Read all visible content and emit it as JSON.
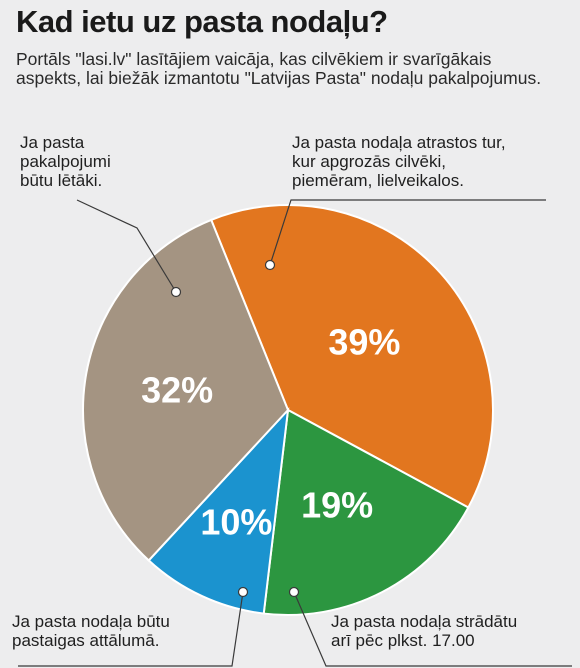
{
  "header": {
    "title": "Kad ietu uz pasta nodaļu?",
    "subtitle": "Portāls \"lasi.lv\" lasītājiem vaicāja, kas cilvēkiem ir svarīgākais aspekts, lai biežāk izmantotu \"Latvijas Pasta\" nodaļu pakalpojumus."
  },
  "chart_data": {
    "type": "pie",
    "title": "Kad ietu uz pasta nodaļu?",
    "slices": [
      {
        "label": "Ja pasta nodaļa atrastos tur, kur apgrozās cilvēki, piemēram, lielveikalos.",
        "value": 39,
        "value_label": "39%",
        "color": "#e2761f",
        "text_color": "#ffffff"
      },
      {
        "label": "Ja pasta nodaļa strādātu arī pēc plkst. 17.00",
        "value": 19,
        "value_label": "19%",
        "color": "#2c9640",
        "text_color": "#ffffff"
      },
      {
        "label": "Ja pasta nodaļa būtu pastaigas attālumā.",
        "value": 10,
        "value_label": "10%",
        "color": "#1b93cf",
        "text_color": "#ffffff"
      },
      {
        "label": "Ja pasta pakalpojumi būtu lētāki.",
        "value": 32,
        "value_label": "32%",
        "color": "#a49482",
        "text_color": "#ffffff"
      }
    ]
  },
  "labels": {
    "cheaper": [
      "Ja pasta",
      "pakalpojumi",
      "būtu lētāki."
    ],
    "crowded": [
      "Ja pasta nodaļa atrastos tur,",
      "kur apgrozās cilvēki,",
      "piemēram, lielveikalos."
    ],
    "walking": [
      "Ja pasta nodaļa būtu",
      "pastaigas attālumā."
    ],
    "hours": [
      "Ja pasta nodaļa strādātu",
      "arī pēc plkst. 17.00"
    ]
  }
}
